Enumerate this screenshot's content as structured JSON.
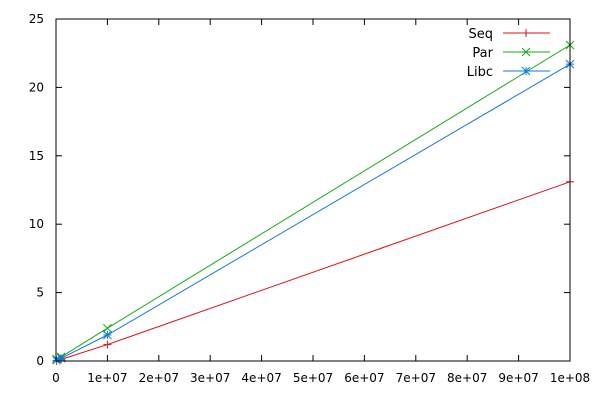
{
  "chart_data": {
    "type": "line",
    "title": "",
    "xlabel": "",
    "ylabel": "",
    "xlim": [
      0,
      100000000
    ],
    "ylim": [
      0,
      25
    ],
    "grid": false,
    "legend_position": "top-right",
    "x_ticks": [
      {
        "value": 0,
        "label": "0"
      },
      {
        "value": 10000000,
        "label": "1e+07"
      },
      {
        "value": 20000000,
        "label": "2e+07"
      },
      {
        "value": 30000000,
        "label": "3e+07"
      },
      {
        "value": 40000000,
        "label": "4e+07"
      },
      {
        "value": 50000000,
        "label": "5e+07"
      },
      {
        "value": 60000000,
        "label": "6e+07"
      },
      {
        "value": 70000000,
        "label": "7e+07"
      },
      {
        "value": 80000000,
        "label": "8e+07"
      },
      {
        "value": 90000000,
        "label": "9e+07"
      },
      {
        "value": 100000000,
        "label": "1e+08"
      }
    ],
    "y_ticks": [
      {
        "value": 0,
        "label": "0"
      },
      {
        "value": 5,
        "label": "5"
      },
      {
        "value": 10,
        "label": "10"
      },
      {
        "value": 15,
        "label": "15"
      },
      {
        "value": 20,
        "label": "20"
      },
      {
        "value": 25,
        "label": "25"
      }
    ],
    "series": [
      {
        "name": "Seq",
        "color": "#dd1111",
        "marker": "plus",
        "points": [
          {
            "x": 100000,
            "y": 0.01
          },
          {
            "x": 1000000,
            "y": 0.12
          },
          {
            "x": 10000000,
            "y": 1.2
          },
          {
            "x": 100000000,
            "y": 13.1
          }
        ]
      },
      {
        "name": "Par",
        "color": "#11aa11",
        "marker": "cross",
        "points": [
          {
            "x": 100000,
            "y": 0.15
          },
          {
            "x": 1000000,
            "y": 0.3
          },
          {
            "x": 10000000,
            "y": 2.4
          },
          {
            "x": 100000000,
            "y": 23.1
          }
        ]
      },
      {
        "name": "Libc",
        "color": "#1177dd",
        "marker": "asterisk",
        "points": [
          {
            "x": 100000,
            "y": 0.05
          },
          {
            "x": 1000000,
            "y": 0.2
          },
          {
            "x": 10000000,
            "y": 1.9
          },
          {
            "x": 100000000,
            "y": 21.7
          }
        ]
      }
    ]
  }
}
